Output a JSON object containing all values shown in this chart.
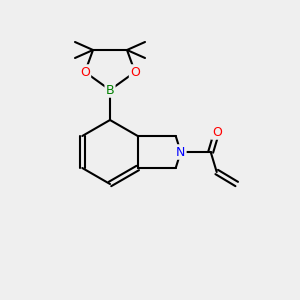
{
  "background_color": "#efefef",
  "bond_color": "#000000",
  "bond_width": 1.5,
  "atom_colors": {
    "B": "#008000",
    "N": "#0000ff",
    "O": "#ff0000",
    "C": "#000000"
  },
  "font_size": 9,
  "label_font_size": 9
}
